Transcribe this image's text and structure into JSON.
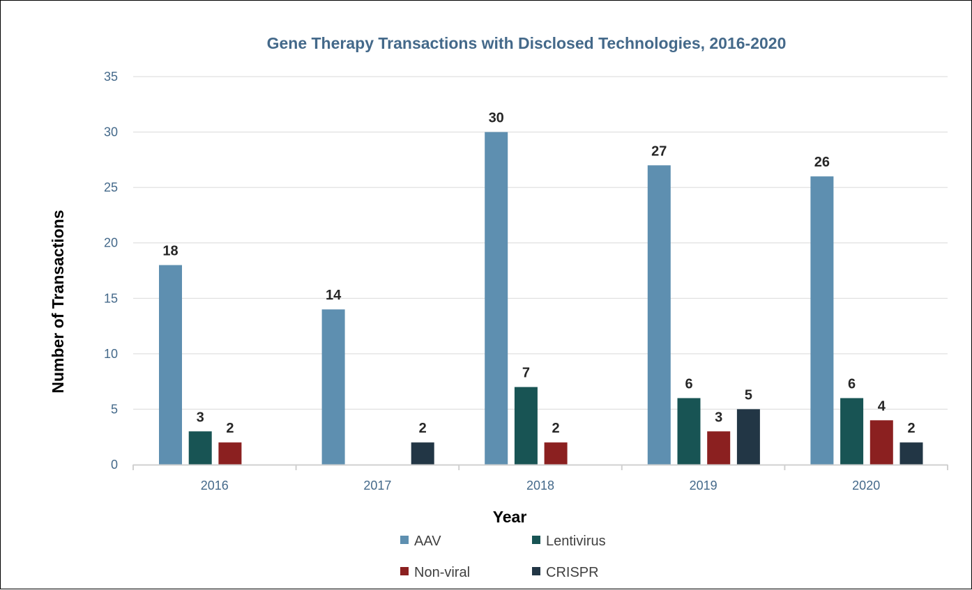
{
  "chart_data": {
    "type": "bar",
    "title": "Gene Therapy Transactions with Disclosed Technologies, 2016-2020",
    "xlabel": "Year",
    "ylabel": "Number of Transactions",
    "categories": [
      "2016",
      "2017",
      "2018",
      "2019",
      "2020"
    ],
    "ylim": [
      0,
      35
    ],
    "yticks": [
      0,
      5,
      10,
      15,
      20,
      25,
      30,
      35
    ],
    "grid": true,
    "legend_position": "bottom",
    "series": [
      {
        "name": "AAV",
        "color": "#5e8fb0",
        "values": [
          18,
          14,
          30,
          27,
          26
        ]
      },
      {
        "name": "Lentivirus",
        "color": "#185454",
        "values": [
          3,
          null,
          7,
          6,
          6
        ]
      },
      {
        "name": "Non-viral",
        "color": "#8b2020",
        "values": [
          2,
          null,
          2,
          3,
          4
        ]
      },
      {
        "name": "CRISPR",
        "color": "#223645",
        "values": [
          null,
          2,
          null,
          5,
          2
        ]
      }
    ]
  }
}
